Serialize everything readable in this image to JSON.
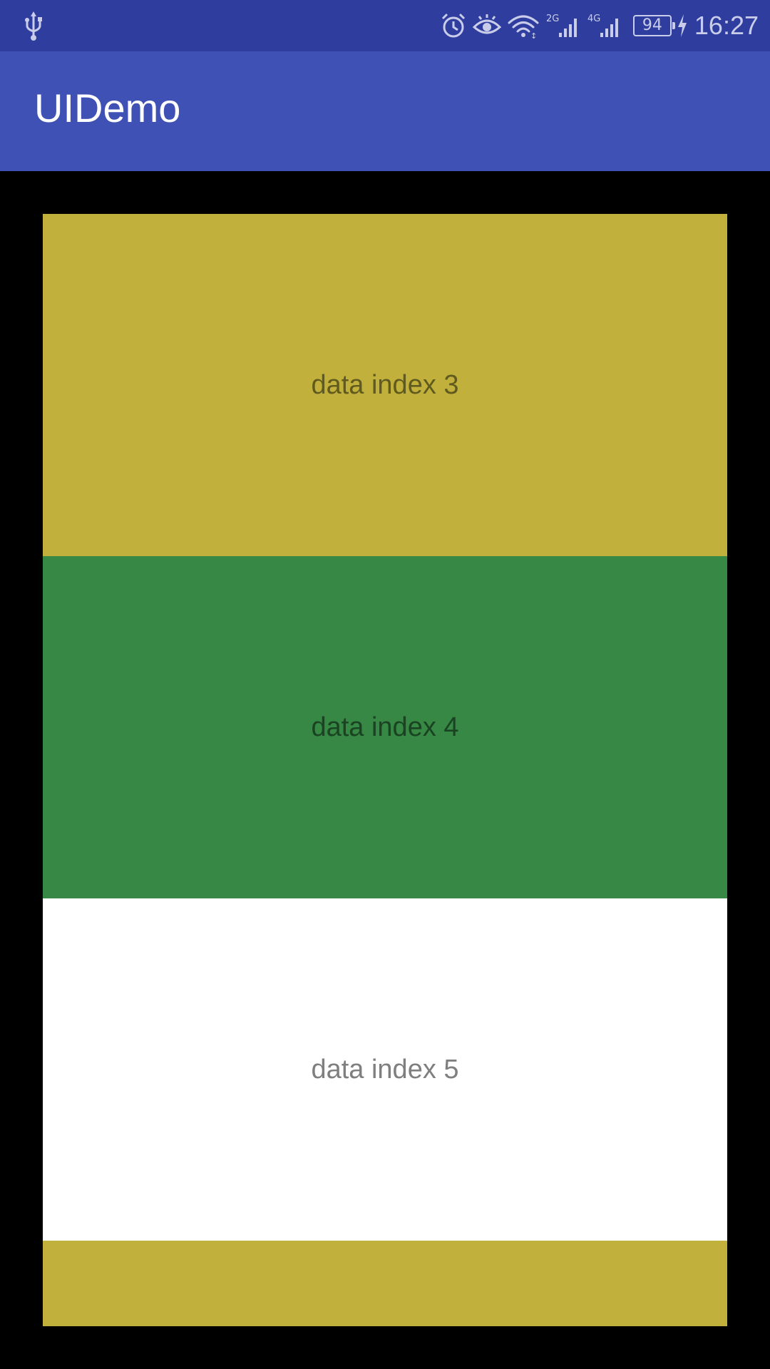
{
  "status_bar": {
    "time": "16:27",
    "battery_level": "94",
    "network_2g_label": "2G",
    "network_4g_label": "4G",
    "icons": [
      "usb-icon",
      "alarm-icon",
      "eye-comfort-icon",
      "wifi-icon",
      "signal-2g-icon",
      "signal-4g-icon",
      "battery-icon",
      "charging-icon"
    ]
  },
  "app_bar": {
    "title": "UIDemo"
  },
  "list": {
    "items": [
      {
        "label": "data index 3",
        "color": "#c1b13c"
      },
      {
        "label": "data index 4",
        "color": "#378845"
      },
      {
        "label": "data index 5",
        "color": "#ffffff"
      },
      {
        "label": "",
        "color": "#c1b13c"
      }
    ]
  }
}
